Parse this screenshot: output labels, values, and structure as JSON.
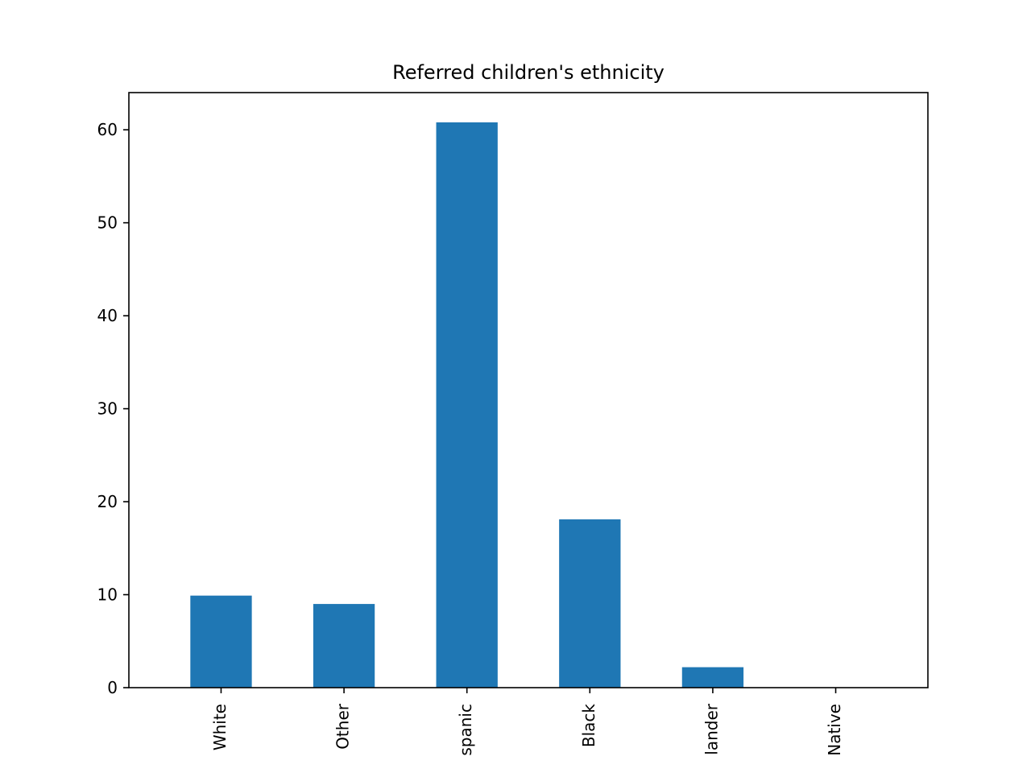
{
  "chart_data": {
    "type": "bar",
    "title": "Referred children's ethnicity",
    "xlabel": "",
    "ylabel": "",
    "categories": [
      "White",
      "Other",
      "spanic",
      "Black",
      "lander",
      "Native"
    ],
    "values": [
      9.9,
      9.0,
      60.8,
      18.1,
      2.2,
      0
    ],
    "ylim": [
      0,
      64
    ],
    "yticks": [
      0,
      10,
      20,
      30,
      40,
      50,
      60
    ],
    "grid": false,
    "legend": "none",
    "bar_color": "#1f77b4"
  }
}
